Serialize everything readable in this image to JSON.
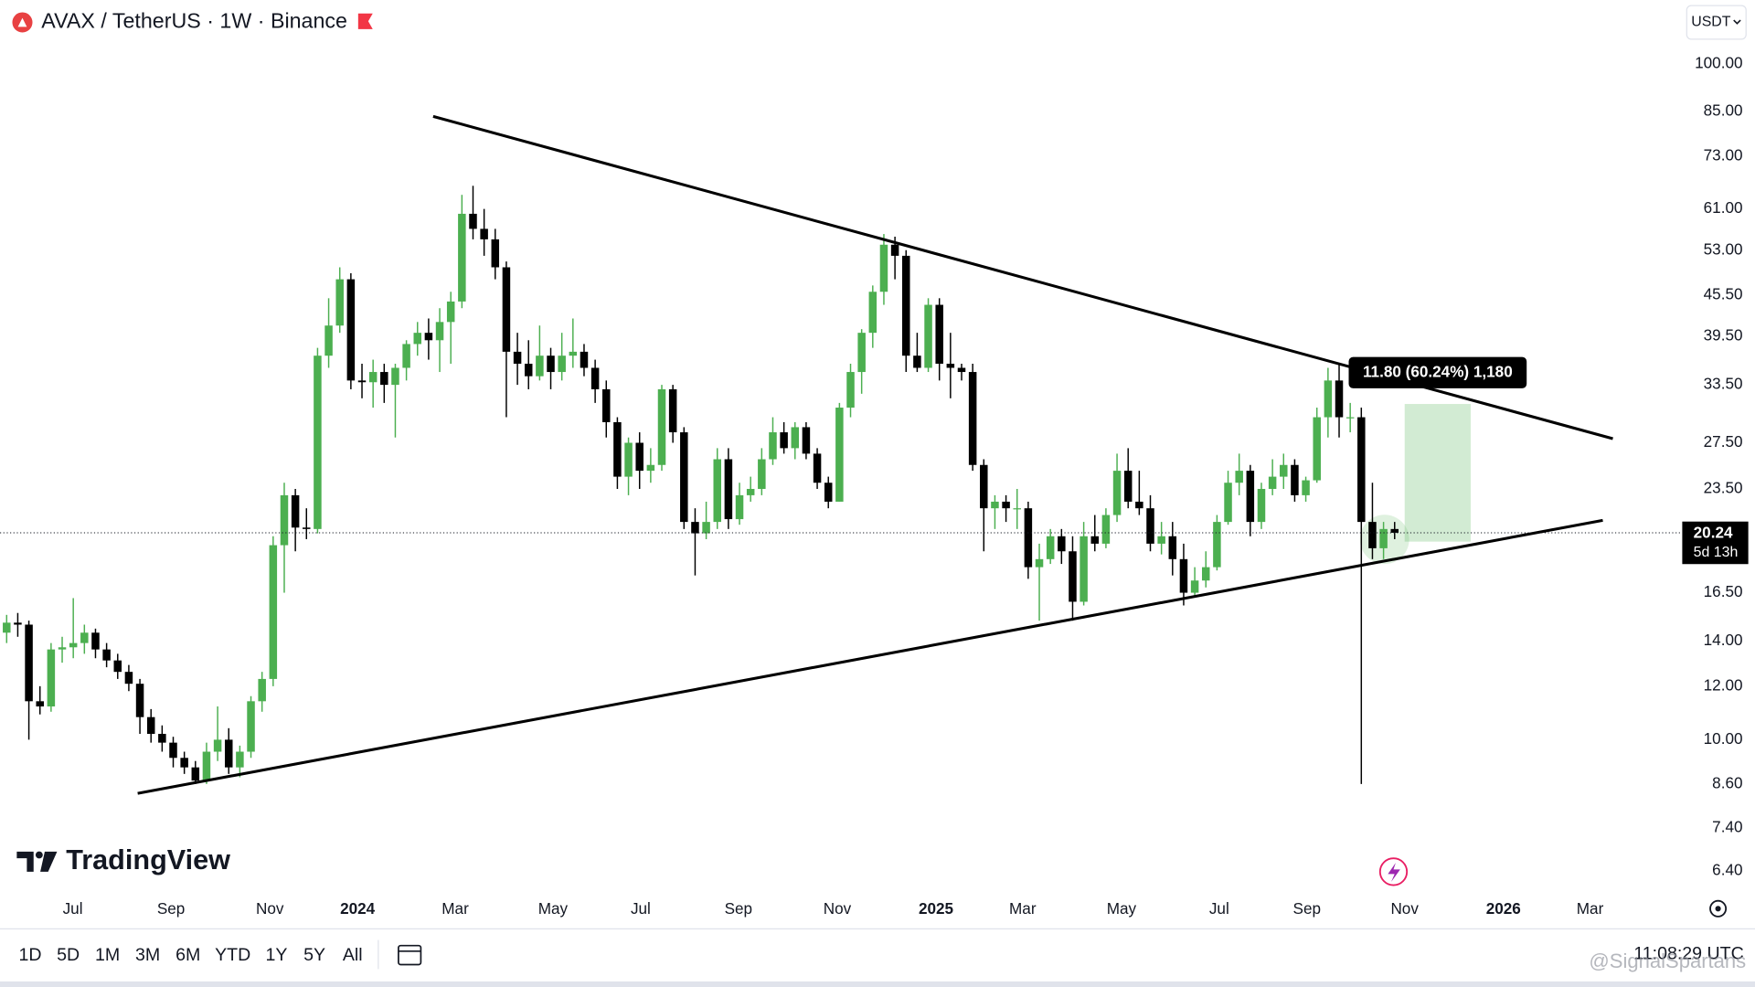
{
  "header": {
    "title": "AVAX / TetherUS · 1W · Binance",
    "currency": "USDT"
  },
  "chart_data": {
    "type": "candlestick",
    "log_scale": true,
    "grid": false,
    "up_color": "#4caf50",
    "down_color": "#000000",
    "ylim": [
      6.0,
      124.3
    ],
    "yticks": [
      {
        "value": 100,
        "label": "100.00"
      },
      {
        "value": 85,
        "label": "85.00"
      },
      {
        "value": 73,
        "label": "73.00"
      },
      {
        "value": 61,
        "label": "61.00"
      },
      {
        "value": 53,
        "label": "53.00"
      },
      {
        "value": 45.5,
        "label": "45.50"
      },
      {
        "value": 39.5,
        "label": "39.50"
      },
      {
        "value": 33.5,
        "label": "33.50"
      },
      {
        "value": 27.5,
        "label": "27.50"
      },
      {
        "value": 23.5,
        "label": "23.50"
      },
      {
        "value": 16.5,
        "label": "16.50"
      },
      {
        "value": 14,
        "label": "14.00"
      },
      {
        "value": 12,
        "label": "12.00"
      },
      {
        "value": 10,
        "label": "10.00"
      },
      {
        "value": 8.6,
        "label": "8.60"
      },
      {
        "value": 7.4,
        "label": "7.40"
      },
      {
        "value": 6.4,
        "label": "6.40"
      }
    ],
    "xlim": [
      -0.6,
      150.6
    ],
    "xticks": [
      {
        "value": 5.95,
        "label": "Jul"
      },
      {
        "value": 14.8,
        "label": "Sep"
      },
      {
        "value": 23.7,
        "label": "Nov"
      },
      {
        "value": 31.6,
        "label": "2024"
      },
      {
        "value": 40.4,
        "label": "Mar"
      },
      {
        "value": 49.2,
        "label": "May"
      },
      {
        "value": 57.1,
        "label": "Jul"
      },
      {
        "value": 65.9,
        "label": "Sep"
      },
      {
        "value": 74.8,
        "label": "Nov"
      },
      {
        "value": 83.7,
        "label": "2025"
      },
      {
        "value": 91.5,
        "label": "Mar"
      },
      {
        "value": 100.4,
        "label": "May"
      },
      {
        "value": 109.2,
        "label": "Jul"
      },
      {
        "value": 117.1,
        "label": "Sep"
      },
      {
        "value": 125.9,
        "label": "Nov"
      },
      {
        "value": 134.8,
        "label": "2026"
      },
      {
        "value": 142.6,
        "label": "Mar"
      }
    ],
    "ohlc": [
      [
        14.4,
        15.3,
        13.9,
        14.9
      ],
      [
        14.9,
        15.4,
        14.2,
        14.8
      ],
      [
        14.8,
        15.0,
        10.0,
        11.4
      ],
      [
        11.4,
        12.0,
        10.9,
        11.2
      ],
      [
        11.2,
        13.9,
        11.0,
        13.6
      ],
      [
        13.6,
        14.2,
        13.0,
        13.7
      ],
      [
        13.7,
        16.2,
        13.2,
        13.9
      ],
      [
        13.9,
        14.8,
        13.4,
        14.4
      ],
      [
        14.4,
        14.6,
        13.2,
        13.6
      ],
      [
        13.6,
        13.9,
        12.8,
        13.1
      ],
      [
        13.1,
        13.4,
        12.3,
        12.6
      ],
      [
        12.6,
        12.9,
        11.8,
        12.1
      ],
      [
        12.1,
        12.3,
        10.2,
        10.8
      ],
      [
        10.8,
        11.1,
        9.9,
        10.2
      ],
      [
        10.2,
        10.5,
        9.6,
        9.9
      ],
      [
        9.9,
        10.1,
        9.1,
        9.4
      ],
      [
        9.4,
        9.6,
        8.9,
        9.1
      ],
      [
        9.1,
        9.3,
        8.6,
        8.7
      ],
      [
        8.7,
        9.9,
        8.6,
        9.6
      ],
      [
        9.6,
        11.2,
        9.3,
        10.0
      ],
      [
        10.0,
        10.4,
        8.9,
        9.1
      ],
      [
        9.1,
        9.8,
        8.8,
        9.6
      ],
      [
        9.6,
        11.6,
        9.4,
        11.4
      ],
      [
        11.4,
        12.6,
        11.0,
        12.3
      ],
      [
        12.3,
        20.0,
        12.0,
        19.4
      ],
      [
        19.4,
        24.0,
        16.5,
        23.0
      ],
      [
        23.0,
        23.5,
        19.0,
        20.6
      ],
      [
        20.6,
        22.0,
        19.8,
        20.5
      ],
      [
        20.5,
        38.0,
        20.2,
        37.0
      ],
      [
        37.0,
        45.0,
        35.5,
        41.0
      ],
      [
        41.0,
        50.0,
        40.0,
        48.0
      ],
      [
        48.0,
        49.0,
        33.0,
        34.0
      ],
      [
        34.0,
        36.0,
        32.0,
        33.8
      ],
      [
        33.8,
        36.5,
        31.0,
        35.0
      ],
      [
        35.0,
        36.0,
        31.5,
        33.5
      ],
      [
        33.5,
        36.0,
        28.0,
        35.5
      ],
      [
        35.5,
        39.0,
        34.0,
        38.5
      ],
      [
        38.5,
        41.5,
        37.0,
        40.0
      ],
      [
        40.0,
        42.0,
        36.5,
        39.0
      ],
      [
        39.0,
        43.5,
        35.0,
        41.5
      ],
      [
        41.5,
        46.0,
        36.0,
        44.5
      ],
      [
        44.5,
        64.0,
        43.5,
        60.0
      ],
      [
        60.0,
        66.0,
        55.0,
        57.0
      ],
      [
        57.0,
        61.0,
        52.0,
        55.0
      ],
      [
        55.0,
        57.0,
        48.0,
        50.0
      ],
      [
        50.0,
        51.0,
        30.0,
        37.5
      ],
      [
        37.5,
        40.0,
        33.5,
        36.0
      ],
      [
        36.0,
        39.0,
        33.0,
        34.5
      ],
      [
        34.5,
        41.0,
        34.0,
        37.0
      ],
      [
        37.0,
        38.0,
        33.0,
        35.0
      ],
      [
        35.0,
        40.0,
        34.0,
        37.0
      ],
      [
        37.0,
        42.0,
        35.5,
        37.5
      ],
      [
        37.5,
        38.5,
        34.5,
        35.5
      ],
      [
        35.5,
        36.5,
        31.5,
        33.0
      ],
      [
        33.0,
        34.0,
        28.0,
        29.5
      ],
      [
        29.5,
        30.0,
        23.5,
        24.5
      ],
      [
        24.5,
        28.0,
        23.0,
        27.5
      ],
      [
        27.5,
        28.5,
        23.5,
        25.0
      ],
      [
        25.0,
        27.0,
        24.0,
        25.5
      ],
      [
        25.5,
        33.5,
        25.0,
        33.0
      ],
      [
        33.0,
        33.5,
        27.5,
        28.5
      ],
      [
        28.5,
        29.0,
        20.5,
        21.0
      ],
      [
        21.0,
        22.0,
        17.5,
        20.2
      ],
      [
        20.2,
        22.5,
        19.8,
        21.0
      ],
      [
        21.0,
        27.0,
        20.5,
        26.0
      ],
      [
        26.0,
        27.0,
        20.5,
        21.2
      ],
      [
        21.2,
        24.0,
        20.8,
        23.0
      ],
      [
        23.0,
        24.5,
        22.5,
        23.5
      ],
      [
        23.5,
        27.0,
        23.0,
        26.0
      ],
      [
        26.0,
        30.0,
        25.5,
        28.5
      ],
      [
        28.5,
        29.5,
        26.5,
        27.0
      ],
      [
        27.0,
        29.5,
        26.0,
        29.0
      ],
      [
        29.0,
        29.5,
        26.0,
        26.5
      ],
      [
        26.5,
        27.0,
        23.5,
        24.0
      ],
      [
        24.0,
        24.5,
        22.0,
        22.5
      ],
      [
        22.5,
        31.5,
        22.5,
        31.0
      ],
      [
        31.0,
        36.0,
        30.0,
        35.0
      ],
      [
        35.0,
        40.5,
        32.5,
        40.0
      ],
      [
        40.0,
        47.0,
        38.0,
        46.0
      ],
      [
        46.0,
        56.0,
        44.0,
        54.0
      ],
      [
        54.0,
        55.5,
        48.0,
        52.0
      ],
      [
        52.0,
        53.0,
        35.0,
        37.0
      ],
      [
        37.0,
        40.0,
        35.0,
        35.5
      ],
      [
        35.5,
        45.0,
        35.0,
        44.0
      ],
      [
        44.0,
        45.0,
        34.0,
        36.0
      ],
      [
        36.0,
        40.0,
        32.0,
        35.5
      ],
      [
        35.5,
        36.0,
        34.0,
        35.0
      ],
      [
        35.0,
        36.0,
        25.0,
        25.5
      ],
      [
        25.5,
        26.0,
        19.0,
        22.0
      ],
      [
        22.0,
        23.0,
        20.5,
        22.5
      ],
      [
        22.5,
        23.0,
        21.0,
        22.0
      ],
      [
        22.0,
        23.5,
        20.5,
        22.0
      ],
      [
        22.0,
        22.5,
        17.3,
        18.0
      ],
      [
        18.0,
        19.5,
        15.0,
        18.5
      ],
      [
        18.5,
        20.5,
        18.2,
        20.0
      ],
      [
        20.0,
        20.5,
        18.2,
        19.0
      ],
      [
        19.0,
        20.0,
        15.0,
        16.0
      ],
      [
        16.0,
        21.0,
        15.8,
        20.0
      ],
      [
        20.0,
        21.5,
        19.0,
        19.5
      ],
      [
        19.5,
        22.0,
        19.2,
        21.5
      ],
      [
        21.5,
        26.5,
        21.0,
        25.0
      ],
      [
        25.0,
        27.0,
        22.0,
        22.5
      ],
      [
        22.5,
        25.0,
        21.5,
        22.0
      ],
      [
        22.0,
        23.0,
        19.0,
        19.5
      ],
      [
        19.5,
        21.0,
        18.8,
        20.0
      ],
      [
        20.0,
        21.0,
        17.5,
        18.5
      ],
      [
        18.5,
        19.5,
        15.8,
        16.5
      ],
      [
        16.5,
        18.0,
        16.3,
        17.2
      ],
      [
        17.2,
        19.0,
        16.8,
        18.0
      ],
      [
        18.0,
        21.5,
        17.8,
        21.0
      ],
      [
        21.0,
        25.0,
        20.8,
        24.0
      ],
      [
        24.0,
        26.5,
        23.0,
        25.0
      ],
      [
        25.0,
        25.5,
        20.0,
        21.0
      ],
      [
        21.0,
        24.0,
        20.5,
        23.5
      ],
      [
        23.5,
        26.0,
        23.0,
        24.5
      ],
      [
        24.5,
        26.5,
        23.5,
        25.5
      ],
      [
        25.5,
        26.0,
        22.5,
        23.0
      ],
      [
        23.0,
        24.5,
        22.5,
        24.2
      ],
      [
        24.2,
        31.0,
        24.0,
        30.0
      ],
      [
        30.0,
        35.5,
        28.0,
        34.0
      ],
      [
        34.0,
        36.0,
        28.0,
        30.0
      ],
      [
        30.0,
        31.5,
        28.5,
        30.0
      ],
      [
        30.0,
        31.0,
        8.6,
        21.0
      ],
      [
        21.0,
        24.0,
        18.5,
        19.2
      ],
      [
        19.2,
        21.0,
        18.5,
        20.5
      ],
      [
        20.5,
        21.0,
        19.8,
        20.24
      ]
    ],
    "countdown": "5d 13h",
    "measure_label": "11.80 (60.24%) 1,180",
    "branding": "TradingView"
  },
  "toolbar": {
    "ranges": [
      "1D",
      "5D",
      "1M",
      "3M",
      "6M",
      "YTD",
      "1Y",
      "5Y",
      "All"
    ],
    "clock": "11:08:29 UTC"
  },
  "watermark": "@SignalSpartans"
}
